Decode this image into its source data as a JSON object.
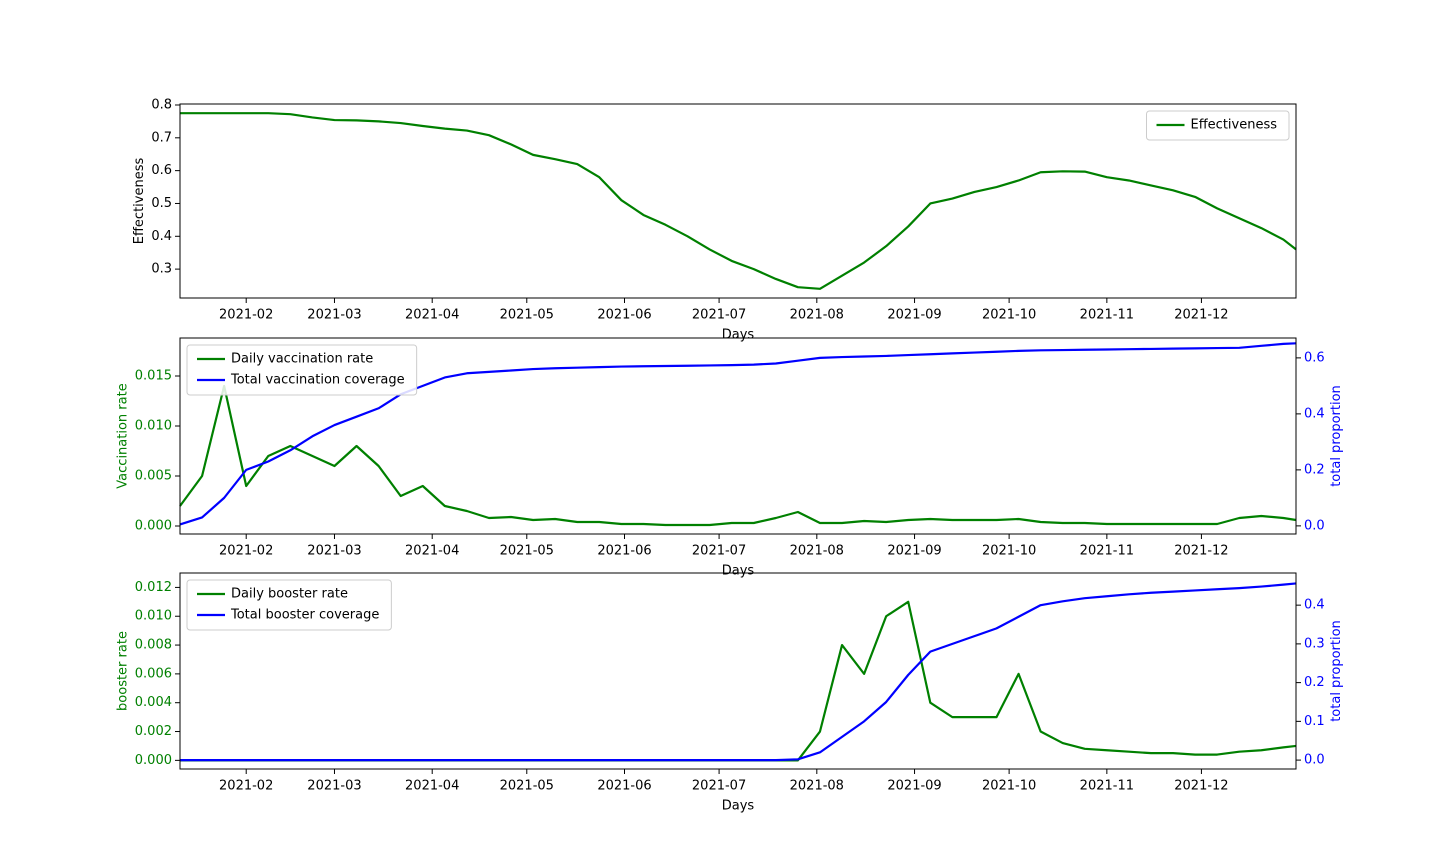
{
  "chart_data": [
    {
      "type": "line",
      "xlabel": "Days",
      "ylabel": "Effectiveness",
      "legend": "upper right",
      "xlim": [
        "2021-01-11",
        "2021-12-31"
      ],
      "xticks": [
        {
          "value": "2021-02-01",
          "label": "2021-02"
        },
        {
          "value": "2021-03-01",
          "label": "2021-03"
        },
        {
          "value": "2021-04-01",
          "label": "2021-04"
        },
        {
          "value": "2021-05-01",
          "label": "2021-05"
        },
        {
          "value": "2021-06-01",
          "label": "2021-06"
        },
        {
          "value": "2021-07-01",
          "label": "2021-07"
        },
        {
          "value": "2021-08-01",
          "label": "2021-08"
        },
        {
          "value": "2021-09-01",
          "label": "2021-09"
        },
        {
          "value": "2021-10-01",
          "label": "2021-10"
        },
        {
          "value": "2021-11-01",
          "label": "2021-11"
        },
        {
          "value": "2021-12-01",
          "label": "2021-12"
        }
      ],
      "ylim": [
        0.212,
        0.803
      ],
      "yticks": [
        0.3,
        0.4,
        0.5,
        0.6,
        0.7,
        0.8
      ],
      "x": [
        "2021-01-11",
        "2021-01-18",
        "2021-01-25",
        "2021-02-01",
        "2021-02-08",
        "2021-02-15",
        "2021-02-22",
        "2021-03-01",
        "2021-03-08",
        "2021-03-15",
        "2021-03-22",
        "2021-03-29",
        "2021-04-05",
        "2021-04-12",
        "2021-04-19",
        "2021-04-26",
        "2021-05-03",
        "2021-05-10",
        "2021-05-17",
        "2021-05-24",
        "2021-05-31",
        "2021-06-07",
        "2021-06-14",
        "2021-06-21",
        "2021-06-28",
        "2021-07-05",
        "2021-07-12",
        "2021-07-19",
        "2021-07-26",
        "2021-08-02",
        "2021-08-09",
        "2021-08-16",
        "2021-08-23",
        "2021-08-30",
        "2021-09-06",
        "2021-09-13",
        "2021-09-20",
        "2021-09-27",
        "2021-10-04",
        "2021-10-11",
        "2021-10-18",
        "2021-10-25",
        "2021-11-01",
        "2021-11-08",
        "2021-11-15",
        "2021-11-22",
        "2021-11-29",
        "2021-12-06",
        "2021-12-13",
        "2021-12-20",
        "2021-12-27",
        "2021-12-31"
      ],
      "series": [
        {
          "name": "Effectiveness",
          "color": "#008000",
          "values": [
            0.775,
            0.775,
            0.775,
            0.775,
            0.775,
            0.772,
            0.762,
            0.754,
            0.753,
            0.75,
            0.745,
            0.736,
            0.728,
            0.722,
            0.708,
            0.68,
            0.648,
            0.635,
            0.62,
            0.58,
            0.51,
            0.465,
            0.435,
            0.4,
            0.36,
            0.325,
            0.3,
            0.27,
            0.245,
            0.24,
            0.28,
            0.32,
            0.37,
            0.43,
            0.5,
            0.515,
            0.535,
            0.55,
            0.57,
            0.595,
            0.598,
            0.597,
            0.58,
            0.57,
            0.555,
            0.54,
            0.52,
            0.485,
            0.455,
            0.425,
            0.39,
            0.36
          ]
        }
      ]
    },
    {
      "type": "line",
      "xlabel": "Days",
      "ylabel": "Vaccination rate",
      "y2label": "total proportion",
      "legend": "upper left",
      "ycolor": "#008000",
      "y2color": "#0000ff",
      "xlim": [
        "2021-01-11",
        "2021-12-31"
      ],
      "xticks": [
        {
          "value": "2021-02-01",
          "label": "2021-02"
        },
        {
          "value": "2021-03-01",
          "label": "2021-03"
        },
        {
          "value": "2021-04-01",
          "label": "2021-04"
        },
        {
          "value": "2021-05-01",
          "label": "2021-05"
        },
        {
          "value": "2021-06-01",
          "label": "2021-06"
        },
        {
          "value": "2021-07-01",
          "label": "2021-07"
        },
        {
          "value": "2021-08-01",
          "label": "2021-08"
        },
        {
          "value": "2021-09-01",
          "label": "2021-09"
        },
        {
          "value": "2021-10-01",
          "label": "2021-10"
        },
        {
          "value": "2021-11-01",
          "label": "2021-11"
        },
        {
          "value": "2021-12-01",
          "label": "2021-12"
        }
      ],
      "ylim": [
        -0.0008,
        0.0188
      ],
      "yticks": [
        {
          "value": 0,
          "label": "0.000"
        },
        {
          "value": 0.005,
          "label": "0.005"
        },
        {
          "value": 0.01,
          "label": "0.010"
        },
        {
          "value": 0.015,
          "label": "0.015"
        }
      ],
      "y2lim": [
        -0.029,
        0.671
      ],
      "y2ticks": [
        {
          "value": 0,
          "label": "0.0"
        },
        0.2,
        0.4,
        0.6
      ],
      "x": [
        "2021-01-11",
        "2021-01-18",
        "2021-01-25",
        "2021-02-01",
        "2021-02-08",
        "2021-02-15",
        "2021-02-22",
        "2021-03-01",
        "2021-03-08",
        "2021-03-15",
        "2021-03-22",
        "2021-03-29",
        "2021-04-05",
        "2021-04-12",
        "2021-04-19",
        "2021-04-26",
        "2021-05-03",
        "2021-05-10",
        "2021-05-17",
        "2021-05-24",
        "2021-05-31",
        "2021-06-07",
        "2021-06-14",
        "2021-06-21",
        "2021-06-28",
        "2021-07-05",
        "2021-07-12",
        "2021-07-19",
        "2021-07-26",
        "2021-08-02",
        "2021-08-09",
        "2021-08-16",
        "2021-08-23",
        "2021-08-30",
        "2021-09-06",
        "2021-09-13",
        "2021-09-20",
        "2021-09-27",
        "2021-10-04",
        "2021-10-11",
        "2021-10-18",
        "2021-10-25",
        "2021-11-01",
        "2021-11-08",
        "2021-11-15",
        "2021-11-22",
        "2021-11-29",
        "2021-12-06",
        "2021-12-13",
        "2021-12-20",
        "2021-12-27",
        "2021-12-31"
      ],
      "series": [
        {
          "name": "Daily vaccination rate",
          "color": "#008000",
          "values": [
            0.002,
            0.005,
            0.014,
            0.004,
            0.007,
            0.008,
            0.007,
            0.006,
            0.008,
            0.006,
            0.003,
            0.004,
            0.002,
            0.0015,
            0.0008,
            0.0009,
            0.0006,
            0.0007,
            0.0004,
            0.0004,
            0.0002,
            0.0002,
            0.0001,
            0.0001,
            0.0001,
            0.0003,
            0.0003,
            0.0008,
            0.0014,
            0.0003,
            0.0003,
            0.0005,
            0.0004,
            0.0006,
            0.0007,
            0.0006,
            0.0006,
            0.0006,
            0.0007,
            0.0004,
            0.0003,
            0.0003,
            0.0002,
            0.0002,
            0.0002,
            0.0002,
            0.0002,
            0.0002,
            0.0008,
            0.001,
            0.0008,
            0.0006
          ]
        },
        {
          "name": "Total vaccination coverage",
          "color": "#0000ff",
          "axis": "y2",
          "values": [
            0.005,
            0.03,
            0.1,
            0.2,
            0.23,
            0.27,
            0.32,
            0.36,
            0.39,
            0.42,
            0.47,
            0.5,
            0.53,
            0.545,
            0.55,
            0.555,
            0.56,
            0.563,
            0.565,
            0.567,
            0.569,
            0.57,
            0.571,
            0.572,
            0.573,
            0.574,
            0.576,
            0.58,
            0.59,
            0.6,
            0.603,
            0.605,
            0.607,
            0.61,
            0.613,
            0.616,
            0.619,
            0.622,
            0.625,
            0.627,
            0.628,
            0.629,
            0.63,
            0.631,
            0.632,
            0.633,
            0.634,
            0.635,
            0.636,
            0.643,
            0.65,
            0.652
          ]
        }
      ]
    },
    {
      "type": "line",
      "xlabel": "Days",
      "ylabel": "booster rate",
      "y2label": "total proportion",
      "legend": "upper left",
      "ycolor": "#008000",
      "y2color": "#0000ff",
      "xlim": [
        "2021-01-11",
        "2021-12-31"
      ],
      "xticks": [
        {
          "value": "2021-02-01",
          "label": "2021-02"
        },
        {
          "value": "2021-03-01",
          "label": "2021-03"
        },
        {
          "value": "2021-04-01",
          "label": "2021-04"
        },
        {
          "value": "2021-05-01",
          "label": "2021-05"
        },
        {
          "value": "2021-06-01",
          "label": "2021-06"
        },
        {
          "value": "2021-07-01",
          "label": "2021-07"
        },
        {
          "value": "2021-08-01",
          "label": "2021-08"
        },
        {
          "value": "2021-09-01",
          "label": "2021-09"
        },
        {
          "value": "2021-10-01",
          "label": "2021-10"
        },
        {
          "value": "2021-11-01",
          "label": "2021-11"
        },
        {
          "value": "2021-12-01",
          "label": "2021-12"
        }
      ],
      "ylim": [
        -0.0006,
        0.013
      ],
      "yticks": [
        {
          "value": 0,
          "label": "0.000"
        },
        {
          "value": 0.002,
          "label": "0.002"
        },
        {
          "value": 0.004,
          "label": "0.004"
        },
        {
          "value": 0.006,
          "label": "0.006"
        },
        {
          "value": 0.008,
          "label": "0.008"
        },
        {
          "value": 0.01,
          "label": "0.010"
        },
        {
          "value": 0.012,
          "label": "0.012"
        }
      ],
      "y2lim": [
        -0.023,
        0.483
      ],
      "y2ticks": [
        {
          "value": 0,
          "label": "0.0"
        },
        0.1,
        0.2,
        0.3,
        0.4
      ],
      "x": [
        "2021-01-11",
        "2021-01-18",
        "2021-01-25",
        "2021-02-01",
        "2021-02-08",
        "2021-02-15",
        "2021-02-22",
        "2021-03-01",
        "2021-03-08",
        "2021-03-15",
        "2021-03-22",
        "2021-03-29",
        "2021-04-05",
        "2021-04-12",
        "2021-04-19",
        "2021-04-26",
        "2021-05-03",
        "2021-05-10",
        "2021-05-17",
        "2021-05-24",
        "2021-05-31",
        "2021-06-07",
        "2021-06-14",
        "2021-06-21",
        "2021-06-28",
        "2021-07-05",
        "2021-07-12",
        "2021-07-19",
        "2021-07-26",
        "2021-08-02",
        "2021-08-09",
        "2021-08-16",
        "2021-08-23",
        "2021-08-30",
        "2021-09-06",
        "2021-09-13",
        "2021-09-20",
        "2021-09-27",
        "2021-10-04",
        "2021-10-11",
        "2021-10-18",
        "2021-10-25",
        "2021-11-01",
        "2021-11-08",
        "2021-11-15",
        "2021-11-22",
        "2021-11-29",
        "2021-12-06",
        "2021-12-13",
        "2021-12-20",
        "2021-12-27",
        "2021-12-31"
      ],
      "series": [
        {
          "name": "Daily booster rate",
          "color": "#008000",
          "values": [
            0,
            0,
            0,
            0,
            0,
            0,
            0,
            0,
            0,
            0,
            0,
            0,
            0,
            0,
            0,
            0,
            0,
            0,
            0,
            0,
            0,
            0,
            0,
            0,
            0,
            0,
            0,
            0,
            0,
            0.002,
            0.008,
            0.006,
            0.01,
            0.011,
            0.004,
            0.003,
            0.003,
            0.003,
            0.006,
            0.002,
            0.0012,
            0.0008,
            0.0007,
            0.0006,
            0.0005,
            0.0005,
            0.0004,
            0.0004,
            0.0006,
            0.0007,
            0.0009,
            0.001
          ]
        },
        {
          "name": "Total booster coverage",
          "color": "#0000ff",
          "axis": "y2",
          "values": [
            0,
            0,
            0,
            0,
            0,
            0,
            0,
            0,
            0,
            0,
            0,
            0,
            0,
            0,
            0,
            0,
            0,
            0,
            0,
            0,
            0,
            0,
            0,
            0,
            0,
            0,
            0,
            0,
            0.002,
            0.02,
            0.06,
            0.1,
            0.15,
            0.22,
            0.28,
            0.3,
            0.32,
            0.34,
            0.37,
            0.4,
            0.41,
            0.418,
            0.423,
            0.428,
            0.432,
            0.435,
            0.438,
            0.441,
            0.444,
            0.448,
            0.453,
            0.456
          ]
        }
      ]
    }
  ]
}
